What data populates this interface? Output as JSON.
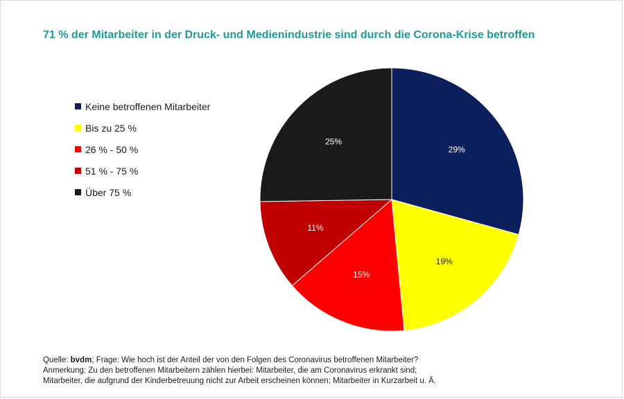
{
  "title": "71 % der Mitarbeiter in der Druck- und Medienindustrie sind durch die Corona-Krise betroffen",
  "chart_data": {
    "type": "pie",
    "title": "71 % der Mitarbeiter in der Druck- und Medienindustrie sind durch die Corona-Krise betroffen",
    "start_angle_deg": 0,
    "direction": "clockwise",
    "legend_position": "left",
    "categories": [
      "Keine betroffenen Mitarbeiter",
      "Bis zu 25 %",
      "26 % - 50 %",
      "51 % - 75 %",
      "Über 75 %"
    ],
    "values": [
      29,
      19,
      15,
      11,
      25
    ],
    "data_labels": [
      "29%",
      "19%",
      "15%",
      "11%",
      "25%"
    ],
    "label_colors": [
      "#ffffff",
      "#1a1a1a",
      "#ffffff",
      "#ffffff",
      "#ffffff"
    ],
    "colors": [
      "#0b1f5c",
      "#ffff00",
      "#ff0000",
      "#c00000",
      "#1a1a1a"
    ]
  },
  "footer": {
    "source_prefix": "Quelle: ",
    "source_name": "bvdm",
    "source_rest": "; Frage: Wie hoch ist der Anteil der von den Folgen des Coronavirus betroffenen Mitarbeiter?",
    "note_line1": "Anmerkung: Zu den betroffenen Mitarbeitern zählen hierbei: Mitarbeiter, die am Coronavirus erkrankt sind;",
    "note_line2": "Mitarbeiter, die aufgrund der Kinderbetreuung nicht zur Arbeit erscheinen können; Mitarbeiter in Kurzarbeit u. Ä."
  }
}
